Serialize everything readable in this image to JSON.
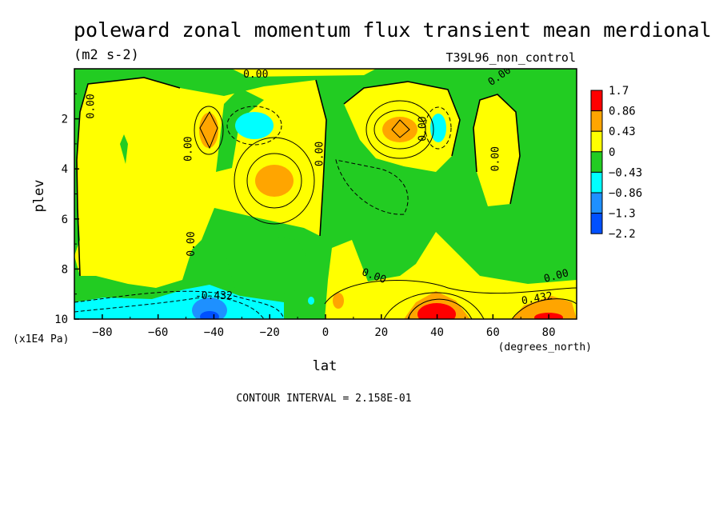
{
  "chart_data": {
    "type": "heatmap",
    "title": "poleward zonal momentum flux transient mean merdional",
    "units": "(m2 s-2)",
    "run_label": "T39L96_non_control",
    "xlabel": "lat",
    "x_units": "(degrees_north)",
    "ylabel": "plev",
    "y_units": "(x1E4 Pa)",
    "footer": "CONTOUR INTERVAL = 2.158E-01",
    "xlim": [
      -90,
      90
    ],
    "ylim": [
      10,
      0
    ],
    "x_ticks": [
      -80,
      -60,
      -40,
      -20,
      0,
      20,
      40,
      60,
      80
    ],
    "x_tick_labels": [
      "−80",
      "−60",
      "−40",
      "−20",
      "0",
      "20",
      "40",
      "60",
      "80"
    ],
    "y_ticks": [
      2,
      4,
      6,
      8,
      10
    ],
    "y_tick_labels": [
      "2",
      "4",
      "6",
      "8",
      "10"
    ],
    "colorbar": {
      "labels": [
        "1.7",
        "0.86",
        "0.43",
        "0",
        "−0.43",
        "−0.86",
        "−1.3",
        "−2.2"
      ],
      "colors": [
        "#ff0000",
        "#ffa500",
        "#ffff00",
        "#22cc22",
        "#00ffff",
        "#1e90ff",
        "#0050ff"
      ]
    },
    "contour_labels": [
      {
        "text": "0.00",
        "lat": -83,
        "plev": 1.5,
        "rotate": -90
      },
      {
        "text": "0.00",
        "lat": -48,
        "plev": 3.2,
        "rotate": -90
      },
      {
        "text": "0.00",
        "lat": -25,
        "plev": 0.35,
        "rotate": 0
      },
      {
        "text": "0.00",
        "lat": -1,
        "plev": 3.4,
        "rotate": -90
      },
      {
        "text": "0.00",
        "lat": -47,
        "plev": 7.0,
        "rotate": -90
      },
      {
        "text": "0.00",
        "lat": 36,
        "plev": 2.4,
        "rotate": -90
      },
      {
        "text": "0.00",
        "lat": 63,
        "plev": 0.4,
        "rotate": -35
      },
      {
        "text": "0.00",
        "lat": 62,
        "plev": 3.6,
        "rotate": -90
      },
      {
        "text": "0.00",
        "lat": 17,
        "plev": 8.4,
        "rotate": 20
      },
      {
        "text": "0.00",
        "lat": 83,
        "plev": 8.4,
        "rotate": -15
      },
      {
        "text": "0.432",
        "lat": 76,
        "plev": 9.3,
        "rotate": -10
      },
      {
        "text": "-0.432",
        "lat": -40,
        "plev": 9.2,
        "rotate": 0
      }
    ]
  }
}
